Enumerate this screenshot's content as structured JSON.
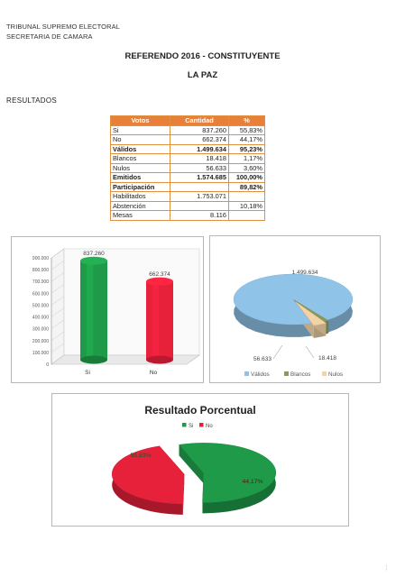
{
  "header": {
    "line1": "TRIBUNAL SUPREMO ELECTORAL",
    "line2": "SECRETARIA DE CAMARA"
  },
  "title": "REFERENDO 2016 - CONSTITUYENTE",
  "subtitle": "LA PAZ",
  "section": "RESULTADOS",
  "table": {
    "headers": [
      "Votos",
      "Cantidad",
      "%"
    ],
    "rows": [
      {
        "label": "Si",
        "cantidad": "837.260",
        "pct": "55,83%",
        "bold": false
      },
      {
        "label": "No",
        "cantidad": "662.374",
        "pct": "44,17%",
        "bold": false
      },
      {
        "label": "Válidos",
        "cantidad": "1.499.634",
        "pct": "95,23%",
        "bold": true
      },
      {
        "label": "Blancos",
        "cantidad": "18.418",
        "pct": "1,17%",
        "bold": false
      },
      {
        "label": "Nulos",
        "cantidad": "56.633",
        "pct": "3,60%",
        "bold": false
      },
      {
        "label": "Emitidos",
        "cantidad": "1.574.685",
        "pct": "100,00%",
        "bold": true
      },
      {
        "label": "Participación",
        "cantidad": "",
        "pct": "89,82%",
        "bold": true
      },
      {
        "label": "Habilitados",
        "cantidad": "1.753.071",
        "pct": "",
        "bold": false
      },
      {
        "label": "Abstención",
        "cantidad": "",
        "pct": "10,18%",
        "bold": false
      },
      {
        "label": "Mesas",
        "cantidad": "8.116",
        "pct": "",
        "bold": false
      }
    ]
  },
  "chart_data": [
    {
      "type": "bar",
      "categories": [
        "Si",
        "No"
      ],
      "values": [
        837260,
        662374
      ],
      "data_labels": [
        "837.260",
        "662.374"
      ],
      "colors": [
        "#1e9a48",
        "#e8213b"
      ],
      "ylim": [
        0,
        900000
      ],
      "yticks": [
        "0",
        "100.000",
        "200.000",
        "300.000",
        "400.000",
        "500.000",
        "600.000",
        "700.000",
        "800.000",
        "900.000"
      ],
      "grid": false
    },
    {
      "type": "pie",
      "labels": [
        "Válidos",
        "Blancos",
        "Nulos"
      ],
      "values": [
        1499634,
        18418,
        56633
      ],
      "data_labels": [
        "1.499.634",
        "18.418",
        "56.633"
      ],
      "colors": [
        "#8fc4e8",
        "#8a9a5b",
        "#f2d3a8"
      ],
      "legend_position": "bottom"
    },
    {
      "type": "pie",
      "title": "Resultado Porcentual",
      "labels": [
        "Si",
        "No"
      ],
      "values": [
        55.83,
        44.17
      ],
      "data_labels": [
        "55,83%",
        "44,17%"
      ],
      "colors": [
        "#1e9a48",
        "#e8213b"
      ],
      "legend_position": "top"
    }
  ]
}
